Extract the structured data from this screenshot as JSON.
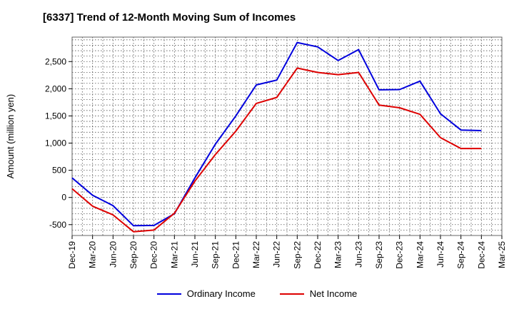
{
  "chart_data": {
    "type": "line",
    "title": "[6337]  Trend of 12-Month Moving Sum of Incomes",
    "xlabel": "",
    "ylabel": "Amount (million yen)",
    "ylim": [
      -700,
      2950
    ],
    "yticks": [
      -500,
      0,
      500,
      1000,
      1500,
      2000,
      2500
    ],
    "ytick_labels": [
      "-500",
      "0",
      "500",
      "1,000",
      "1,500",
      "2,000",
      "2,500"
    ],
    "categories": [
      "Dec-19",
      "Mar-20",
      "Jun-20",
      "Sep-20",
      "Dec-20",
      "Mar-21",
      "Jun-21",
      "Sep-21",
      "Dec-21",
      "Mar-22",
      "Jun-22",
      "Sep-22",
      "Dec-22",
      "Mar-23",
      "Jun-23",
      "Sep-23",
      "Dec-23",
      "Mar-24",
      "Jun-24",
      "Sep-24",
      "Dec-24",
      "Mar-25"
    ],
    "grid": true,
    "legend_position": "bottom-center",
    "series": [
      {
        "name": "Ordinary Income",
        "color": "#0000dd",
        "values": [
          360,
          40,
          -150,
          -520,
          -515,
          -300,
          360,
          980,
          1500,
          2070,
          2160,
          2850,
          2770,
          2520,
          2720,
          1980,
          1985,
          2140,
          1540,
          1240,
          1230,
          null
        ]
      },
      {
        "name": "Net Income",
        "color": "#dd0000",
        "values": [
          160,
          -160,
          -320,
          -630,
          -600,
          -290,
          300,
          790,
          1220,
          1730,
          1840,
          2380,
          2300,
          2260,
          2300,
          1700,
          1650,
          1530,
          1100,
          900,
          900,
          null
        ]
      }
    ]
  }
}
